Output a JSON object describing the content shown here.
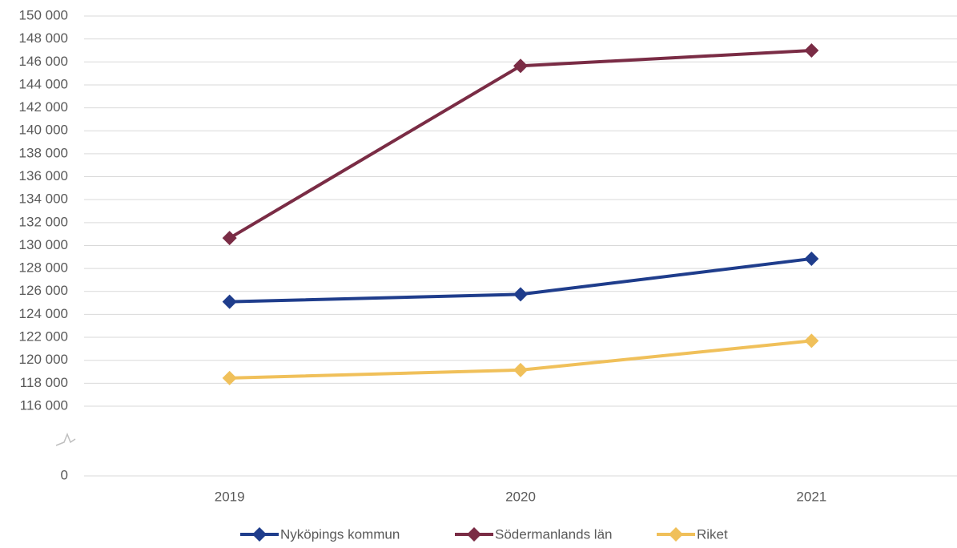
{
  "chart_data": {
    "type": "line",
    "categories": [
      "2019",
      "2020",
      "2021"
    ],
    "series": [
      {
        "name": "Nyköpings kommun",
        "color": "#1f3d8c",
        "values": [
          125100,
          125750,
          128850
        ]
      },
      {
        "name": "Södermanlands län",
        "color": "#7a2c45",
        "values": [
          130650,
          145650,
          147000
        ]
      },
      {
        "name": "Riket",
        "color": "#f0c05a",
        "values": [
          118450,
          119150,
          121700
        ]
      }
    ],
    "ylim": [
      116000,
      150000
    ],
    "yticks": [
      0,
      {
        "value": 116000,
        "label": "116 000"
      },
      {
        "value": 118000,
        "label": "118 000"
      },
      {
        "value": 120000,
        "label": "120 000"
      },
      {
        "value": 122000,
        "label": "122 000"
      },
      {
        "value": 124000,
        "label": "124 000"
      },
      {
        "value": 126000,
        "label": "126 000"
      },
      {
        "value": 128000,
        "label": "128 000"
      },
      {
        "value": 130000,
        "label": "130 000"
      },
      {
        "value": 132000,
        "label": "132 000"
      },
      {
        "value": 134000,
        "label": "134 000"
      },
      {
        "value": 136000,
        "label": "136 000"
      },
      {
        "value": 138000,
        "label": "138 000"
      },
      {
        "value": 140000,
        "label": "140 000"
      },
      {
        "value": 142000,
        "label": "142 000"
      },
      {
        "value": 144000,
        "label": "144 000"
      },
      {
        "value": 146000,
        "label": "146 000"
      },
      {
        "value": 148000,
        "label": "148 000"
      },
      {
        "value": 150000,
        "label": "150 000"
      }
    ],
    "axis_break": true,
    "grid": true,
    "legend": "bottom"
  }
}
